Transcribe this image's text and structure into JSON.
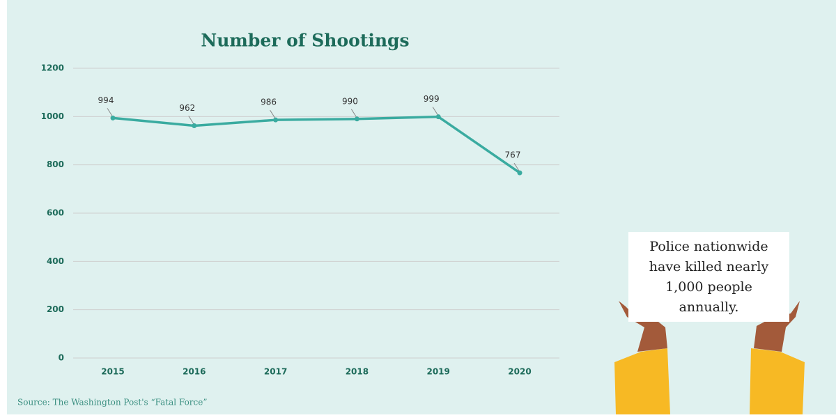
{
  "chart_data": {
    "type": "line",
    "title": "Number of Shootings",
    "categories": [
      "2015",
      "2016",
      "2017",
      "2018",
      "2019",
      "2020"
    ],
    "series": [
      {
        "name": "Number of Shootings",
        "color": "#3aaba0",
        "values": [
          994,
          962,
          986,
          990,
          999,
          767
        ]
      }
    ],
    "ylim": [
      0,
      1200
    ],
    "yticks": [
      0,
      200,
      400,
      600,
      800,
      1000,
      1200
    ],
    "grid": true,
    "source": "Source: The Washington Post's “Fatal Force”",
    "annotation": "Police nationwide have killed nearly 1,000 people annually."
  }
}
